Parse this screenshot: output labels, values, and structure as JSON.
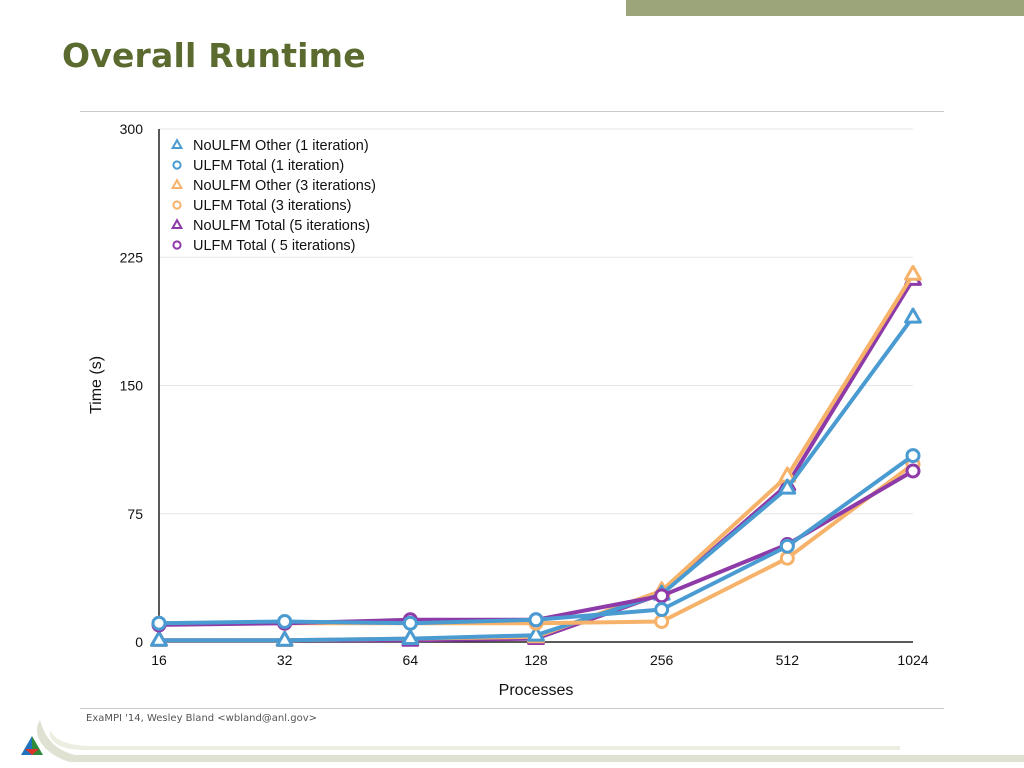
{
  "slide": {
    "title": "Overall Runtime",
    "footer": "ExaMPI '14, Wesley Bland <wbland@anl.gov>"
  },
  "colors": {
    "title": "#5b6b2f",
    "top_bar": "#9ca57a",
    "blue": "#4a9bd1",
    "orange": "#f7b269",
    "purple": "#8e3aa8",
    "grid": "#e6e6e6",
    "axis": "#222222"
  },
  "chart_data": {
    "type": "line",
    "xlabel": "Processes",
    "ylabel": "Time (s)",
    "categories": [
      "16",
      "32",
      "64",
      "128",
      "256",
      "512",
      "1024"
    ],
    "ylim": [
      0,
      300
    ],
    "yticks": [
      0,
      75,
      150,
      225,
      300
    ],
    "grid": true,
    "legend_position": "top-left",
    "series": [
      {
        "name": "NoULFM Total (5 iterations)",
        "marker": "triangle",
        "color": "purple",
        "values": [
          1,
          1,
          1,
          2,
          28,
          92,
          212
        ]
      },
      {
        "name": "NoULFM Other (3 iterations)",
        "marker": "triangle",
        "color": "orange",
        "values": [
          1,
          1,
          2,
          3,
          30,
          97,
          215
        ]
      },
      {
        "name": "NoULFM Other (1 iteration)",
        "marker": "triangle",
        "color": "blue",
        "values": [
          1,
          1,
          2,
          4,
          28,
          90,
          190
        ]
      },
      {
        "name": "ULFM Total (3 iterations)",
        "marker": "circle",
        "color": "orange",
        "values": [
          11,
          11,
          11,
          11,
          12,
          49,
          104
        ]
      },
      {
        "name": "ULFM Total ( 5 iterations)",
        "marker": "circle",
        "color": "purple",
        "values": [
          10,
          11,
          13,
          13,
          27,
          57,
          100
        ]
      },
      {
        "name": "ULFM Total (1 iteration)",
        "marker": "circle",
        "color": "blue",
        "values": [
          11,
          12,
          11,
          13,
          19,
          56,
          109
        ]
      }
    ],
    "legend": [
      {
        "name": "NoULFM Other (1 iteration)",
        "marker": "triangle",
        "color": "blue"
      },
      {
        "name": "ULFM Total (1 iteration)",
        "marker": "circle",
        "color": "blue"
      },
      {
        "name": "NoULFM Other (3 iterations)",
        "marker": "triangle",
        "color": "orange"
      },
      {
        "name": "ULFM Total (3 iterations)",
        "marker": "circle",
        "color": "orange"
      },
      {
        "name": "NoULFM Total (5 iterations)",
        "marker": "triangle",
        "color": "purple"
      },
      {
        "name": "ULFM Total ( 5 iterations)",
        "marker": "circle",
        "color": "purple"
      }
    ]
  }
}
